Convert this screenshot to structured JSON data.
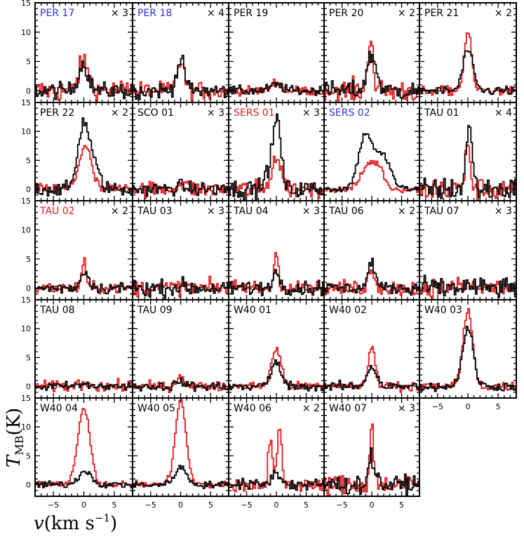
{
  "figure": {
    "ylabel_main": "T",
    "ylabel_sub": "MB",
    "ylabel_unit": "(K)",
    "xlabel_main": "v",
    "xlabel_unit": "(km s",
    "xlabel_exp": "−1",
    "xlabel_close": ")"
  },
  "colors": {
    "series_red": "#e41a1c",
    "series_black": "#000000",
    "label_blue": "#2e2ee8",
    "label_red": "#e41a1c",
    "label_black": "#000000"
  },
  "chart_data": {
    "type": "line",
    "layout_note": "5 columns x 5 rows of spectra panels; shared axes",
    "xlim": [
      -8,
      8
    ],
    "ylim": [
      -2,
      15
    ],
    "x_ticks": [
      -5,
      0,
      5
    ],
    "x_tick_labels": [
      "−5",
      "0",
      "5"
    ],
    "y_ticks": [
      0,
      5,
      10,
      15
    ],
    "y_tick_labels": [
      "0",
      "5",
      "10",
      "15"
    ],
    "panels": [
      {
        "name": "PER 17",
        "name_color": "blue",
        "scale": "× 3",
        "red": [
          {
            "c": 0.0,
            "a": 5.0,
            "w": 0.8
          }
        ],
        "black": [
          {
            "c": -0.1,
            "a": 4.5,
            "w": 0.8
          }
        ],
        "noise_red": 1.0,
        "noise_black": 0.7
      },
      {
        "name": "PER 18",
        "name_color": "blue",
        "scale": "× 4",
        "red": [
          {
            "c": 0.0,
            "a": 5.0,
            "w": 0.6
          }
        ],
        "black": [
          {
            "c": 0.0,
            "a": 5.0,
            "w": 0.7
          }
        ],
        "noise_red": 0.8,
        "noise_black": 0.7
      },
      {
        "name": "PER 19",
        "name_color": "black",
        "scale": "",
        "red": [
          {
            "c": 0.0,
            "a": 1.5,
            "w": 0.8
          }
        ],
        "black": [
          {
            "c": 0.0,
            "a": 1.0,
            "w": 1.0
          }
        ],
        "noise_red": 0.4,
        "noise_black": 0.4
      },
      {
        "name": "PER 20",
        "name_color": "black",
        "scale": "× 2",
        "red": [
          {
            "c": -0.2,
            "a": 10.0,
            "w": 0.4
          }
        ],
        "black": [
          {
            "c": 0.0,
            "a": 6.0,
            "w": 0.8
          }
        ],
        "noise_red": 1.0,
        "noise_black": 0.8
      },
      {
        "name": "PER 21",
        "name_color": "black",
        "scale": "× 2",
        "red": [
          {
            "c": 0.0,
            "a": 10.0,
            "w": 0.6
          }
        ],
        "black": [
          {
            "c": 0.0,
            "a": 7.0,
            "w": 0.8
          }
        ],
        "noise_red": 0.4,
        "noise_black": 0.4
      },
      {
        "name": "PER 22",
        "name_color": "black",
        "scale": "× 2",
        "red": [
          {
            "c": 0.2,
            "a": 7.5,
            "w": 1.0
          }
        ],
        "black": [
          {
            "c": -0.1,
            "a": 10.5,
            "w": 0.9
          },
          {
            "c": 1.5,
            "a": 4.0,
            "w": 1.0
          }
        ],
        "noise_red": 0.5,
        "noise_black": 0.6
      },
      {
        "name": "SCO 01",
        "name_color": "black",
        "scale": "× 3",
        "red": [
          {
            "c": 0.0,
            "a": 1.0,
            "w": 0.8
          }
        ],
        "black": [
          {
            "c": 0.0,
            "a": 0.5,
            "w": 0.8
          }
        ],
        "noise_red": 0.7,
        "noise_black": 0.6
      },
      {
        "name": "SERS 01",
        "name_color": "red",
        "scale": "× 3",
        "red": [
          {
            "c": 0.0,
            "a": 5.5,
            "w": 0.8
          }
        ],
        "black": [
          {
            "c": 0.2,
            "a": 11.0,
            "w": 0.6
          },
          {
            "c": -1.0,
            "a": 4.0,
            "w": 0.8
          }
        ],
        "noise_red": 0.8,
        "noise_black": 0.8
      },
      {
        "name": "SERS 02",
        "name_color": "blue",
        "scale": "",
        "red": [
          {
            "c": -0.3,
            "a": 4.5,
            "w": 1.3
          },
          {
            "c": 1.5,
            "a": 2.0,
            "w": 0.8
          }
        ],
        "black": [
          {
            "c": -1.0,
            "a": 9.5,
            "w": 1.2
          },
          {
            "c": 2.0,
            "a": 5.5,
            "w": 1.2
          }
        ],
        "noise_red": 0.3,
        "noise_black": 0.3
      },
      {
        "name": "TAU 01",
        "name_color": "black",
        "scale": "× 4",
        "red": [
          {
            "c": 0.0,
            "a": 9.0,
            "w": 0.35
          }
        ],
        "black": [
          {
            "c": 0.2,
            "a": 11.0,
            "w": 0.5
          }
        ],
        "noise_red": 1.0,
        "noise_black": 1.0
      },
      {
        "name": "TAU 02",
        "name_color": "red",
        "scale": "× 2",
        "red": [
          {
            "c": 0.0,
            "a": 4.5,
            "w": 0.35
          }
        ],
        "black": [
          {
            "c": 0.2,
            "a": 2.8,
            "w": 0.7
          }
        ],
        "noise_red": 0.5,
        "noise_black": 0.5
      },
      {
        "name": "TAU 03",
        "name_color": "black",
        "scale": "× 3",
        "red": [
          {
            "c": 0.0,
            "a": 0.3,
            "w": 0.8
          }
        ],
        "black": [
          {
            "c": 0.0,
            "a": 0.3,
            "w": 0.8
          }
        ],
        "noise_red": 0.7,
        "noise_black": 0.7
      },
      {
        "name": "TAU 04",
        "name_color": "black",
        "scale": "× 3",
        "red": [
          {
            "c": 0.0,
            "a": 6.0,
            "w": 0.4
          }
        ],
        "black": [
          {
            "c": 0.0,
            "a": 2.5,
            "w": 0.7
          }
        ],
        "noise_red": 0.7,
        "noise_black": 0.6
      },
      {
        "name": "TAU 06",
        "name_color": "black",
        "scale": "× 2",
        "red": [
          {
            "c": 0.0,
            "a": 3.0,
            "w": 0.6
          }
        ],
        "black": [
          {
            "c": 0.0,
            "a": 4.5,
            "w": 0.6
          }
        ],
        "noise_red": 0.7,
        "noise_black": 0.5
      },
      {
        "name": "TAU 07",
        "name_color": "black",
        "scale": "× 3",
        "red": [
          {
            "c": 0.0,
            "a": 0.5,
            "w": 0.8
          }
        ],
        "black": [
          {
            "c": 0.0,
            "a": 0.3,
            "w": 0.8
          }
        ],
        "noise_red": 0.9,
        "noise_black": 0.9
      },
      {
        "name": "TAU 08",
        "name_color": "black",
        "scale": "",
        "red": [
          {
            "c": 0.0,
            "a": 0.6,
            "w": 1.0
          }
        ],
        "black": [
          {
            "c": 0.0,
            "a": 0.3,
            "w": 1.0
          }
        ],
        "noise_red": 0.5,
        "noise_black": 0.4
      },
      {
        "name": "TAU 09",
        "name_color": "black",
        "scale": "",
        "red": [
          {
            "c": 0.0,
            "a": 2.0,
            "w": 0.6
          }
        ],
        "black": [
          {
            "c": 0.0,
            "a": 0.8,
            "w": 0.8
          }
        ],
        "noise_red": 0.4,
        "noise_black": 0.4
      },
      {
        "name": "W40 01",
        "name_color": "black",
        "scale": "",
        "red": [
          {
            "c": 0.0,
            "a": 6.5,
            "w": 0.8
          }
        ],
        "black": [
          {
            "c": 0.0,
            "a": 4.0,
            "w": 0.9
          }
        ],
        "noise_red": 0.4,
        "noise_black": 0.4
      },
      {
        "name": "W40 02",
        "name_color": "black",
        "scale": "",
        "red": [
          {
            "c": 0.0,
            "a": 6.5,
            "w": 0.6
          }
        ],
        "black": [
          {
            "c": 0.0,
            "a": 3.5,
            "w": 0.8
          }
        ],
        "noise_red": 0.4,
        "noise_black": 0.4
      },
      {
        "name": "W40 03",
        "name_color": "black",
        "scale": "",
        "red": [
          {
            "c": 0.0,
            "a": 13.0,
            "w": 0.8
          }
        ],
        "black": [
          {
            "c": 0.0,
            "a": 10.0,
            "w": 0.9
          }
        ],
        "noise_red": 0.4,
        "noise_black": 0.4
      },
      {
        "name": "W40 04",
        "name_color": "black",
        "scale": "",
        "red": [
          {
            "c": 0.0,
            "a": 13.0,
            "w": 1.0
          }
        ],
        "black": [
          {
            "c": 0.2,
            "a": 2.5,
            "w": 1.0
          }
        ],
        "noise_red": 0.3,
        "noise_black": 0.3
      },
      {
        "name": "W40 05",
        "name_color": "black",
        "scale": "",
        "red": [
          {
            "c": 0.0,
            "a": 14.5,
            "w": 0.9
          }
        ],
        "black": [
          {
            "c": 0.0,
            "a": 3.0,
            "w": 1.0
          }
        ],
        "noise_red": 0.3,
        "noise_black": 0.3
      },
      {
        "name": "W40 06",
        "name_color": "black",
        "scale": "× 2",
        "red": [
          {
            "c": -1.0,
            "a": 8.0,
            "w": 0.35
          },
          {
            "c": 0.5,
            "a": 11.0,
            "w": 0.35
          }
        ],
        "black": [
          {
            "c": 0.0,
            "a": 2.0,
            "w": 0.8
          }
        ],
        "noise_red": 0.6,
        "noise_black": 0.5
      },
      {
        "name": "W40 07",
        "name_color": "black",
        "scale": "× 3",
        "red": [
          {
            "c": 0.0,
            "a": 10.0,
            "w": 0.35
          }
        ],
        "black": [
          {
            "c": 0.0,
            "a": 4.5,
            "w": 0.6
          }
        ],
        "noise_red": 1.0,
        "noise_black": 0.8
      }
    ]
  }
}
